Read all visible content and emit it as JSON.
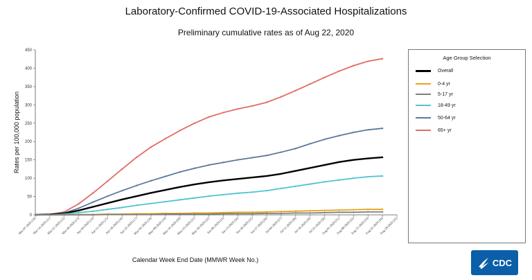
{
  "title": "Laboratory-Confirmed COVID-19-Associated Hospitalizations",
  "subtitle": "Preliminary cumulative rates as of Aug 22, 2020",
  "legend": {
    "title": "Age Group Selection",
    "items": [
      "Overall",
      "0-4 yr",
      "5-17 yr",
      "18-49 yr",
      "50-64 yr",
      "65+ yr"
    ]
  },
  "logo_text": "CDC",
  "colors": {
    "overall": "#000000",
    "age_0_4": "#e8a317",
    "age_5_17": "#7f7f7f",
    "age_18_49": "#4fc3d1",
    "age_50_64": "#5b7a99",
    "age_65_plus": "#e06c66"
  },
  "chart_data": {
    "type": "line",
    "xlabel": "Calendar Week End Date (MMWR Week No.)",
    "ylabel": "Rates per 100,000 population",
    "ylim": [
      0,
      450
    ],
    "yticks": [
      0,
      50,
      100,
      150,
      200,
      250,
      300,
      350,
      400,
      450
    ],
    "categories": [
      "Mar-07-2020 (10)",
      "Mar-14-2020 (11)",
      "Mar-21-2020 (12)",
      "Mar-28-2020 (13)",
      "Apr-04-2020 (14)",
      "Apr-11-2020 (15)",
      "Apr-18-2020 (16)",
      "Apr-25-2020 (17)",
      "May-02-2020 (18)",
      "May-09-2020 (19)",
      "May-16-2020 (20)",
      "May-23-2020 (21)",
      "May-30-2020 (22)",
      "Jun-06-2020 (23)",
      "Jun-13-2020 (24)",
      "Jun-20-2020 (25)",
      "Jun-27-2020 (26)",
      "Jul-04-2020 (27)",
      "Jul-11-2020 (28)",
      "Jul-18-2020 (29)",
      "Jul-25-2020 (30)",
      "Aug-01-2020 (31)",
      "Aug-08-2020 (32)",
      "Aug-15-2020 (33)",
      "Aug-22-2020 (34)",
      "Aug-29-2020 (35)"
    ],
    "grid": false,
    "legend_position": "right",
    "series": [
      {
        "name": "65+ yr",
        "color_key": "age_65_plus",
        "values": [
          0,
          1,
          8,
          30,
          60,
          92,
          125,
          157,
          185,
          208,
          230,
          250,
          267,
          279,
          289,
          297,
          307,
          322,
          339,
          357,
          375,
          392,
          407,
          419,
          426,
          null
        ]
      },
      {
        "name": "50-64 yr",
        "color_key": "age_50_64",
        "values": [
          0,
          1,
          5,
          18,
          35,
          51,
          66,
          80,
          93,
          105,
          117,
          127,
          136,
          143,
          150,
          156,
          162,
          171,
          181,
          194,
          206,
          216,
          225,
          232,
          236,
          null
        ]
      },
      {
        "name": "Overall",
        "color_key": "overall",
        "values": [
          0,
          1,
          4,
          12,
          22,
          32,
          42,
          51,
          60,
          68,
          76,
          83,
          89,
          94,
          98,
          102,
          106,
          112,
          120,
          128,
          136,
          144,
          150,
          154,
          157,
          null
        ]
      },
      {
        "name": "18-49 yr",
        "color_key": "age_18_49",
        "values": [
          0,
          0,
          2,
          6,
          10,
          15,
          20,
          26,
          31,
          36,
          41,
          46,
          51,
          55,
          59,
          62,
          66,
          72,
          78,
          84,
          90,
          95,
          100,
          104,
          106,
          null
        ]
      },
      {
        "name": "0-4 yr",
        "color_key": "age_0_4",
        "values": [
          0,
          0,
          0,
          1,
          1,
          2,
          2,
          3,
          3,
          4,
          4,
          5,
          5,
          6,
          7,
          7,
          8,
          9,
          10,
          11,
          12,
          13,
          14,
          15,
          15,
          null
        ]
      },
      {
        "name": "5-17 yr",
        "color_key": "age_5_17",
        "values": [
          0,
          0,
          0,
          0,
          0,
          1,
          1,
          1,
          1,
          2,
          2,
          2,
          2,
          3,
          3,
          3,
          4,
          4,
          5,
          5,
          6,
          7,
          7,
          8,
          8,
          null
        ]
      }
    ]
  }
}
